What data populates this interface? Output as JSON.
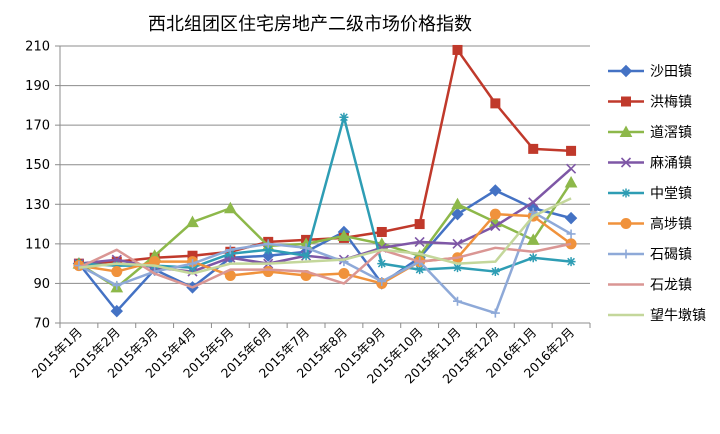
{
  "chart_data": {
    "type": "line",
    "title": "西北组团区住宅房地产二级市场价格指数",
    "xlabel": "",
    "ylabel": "",
    "ylim": [
      70,
      210
    ],
    "yticks": [
      70,
      90,
      110,
      130,
      150,
      170,
      190,
      210
    ],
    "grid": true,
    "legend": "right",
    "categories": [
      "2015年1月",
      "2015年2月",
      "2015年3月",
      "2015年4月",
      "2015年5月",
      "2015年6月",
      "2015年7月",
      "2015年8月",
      "2015年9月",
      "2015年10月",
      "2015年11月",
      "2015年12月",
      "2016年1月",
      "2016年2月"
    ],
    "series": [
      {
        "name": "沙田镇",
        "color": "#4472C4",
        "marker": "diamond",
        "values": [
          100,
          76,
          97,
          88,
          103,
          104,
          106,
          116,
          90,
          103,
          125,
          137,
          128,
          123
        ]
      },
      {
        "name": "洪梅镇",
        "color": "#C0392B",
        "marker": "square",
        "values": [
          100,
          101,
          103,
          104,
          106,
          111,
          112,
          113,
          116,
          120,
          208,
          181,
          158,
          157
        ]
      },
      {
        "name": "道滘镇",
        "color": "#8DB84A",
        "marker": "triangle",
        "values": [
          100,
          88,
          104,
          121,
          128,
          109,
          110,
          114,
          110,
          104,
          130,
          121,
          112,
          141
        ]
      },
      {
        "name": "麻涌镇",
        "color": "#7E57A6",
        "marker": "x",
        "values": [
          100,
          102,
          98,
          96,
          103,
          100,
          104,
          102,
          108,
          111,
          110,
          119,
          131,
          148
        ]
      },
      {
        "name": "中堂镇",
        "color": "#2E9DB4",
        "marker": "star",
        "values": [
          100,
          99,
          99,
          98,
          105,
          107,
          104,
          174,
          100,
          97,
          98,
          96,
          103,
          101
        ]
      },
      {
        "name": "高埗镇",
        "color": "#F0923C",
        "marker": "circle",
        "values": [
          99,
          96,
          101,
          101,
          94,
          96,
          94,
          95,
          90,
          101,
          103,
          125,
          124,
          110
        ]
      },
      {
        "name": "石碣镇",
        "color": "#8EA9D8",
        "marker": "plus",
        "values": [
          99,
          89,
          96,
          100,
          107,
          110,
          108,
          101,
          91,
          101,
          81,
          75,
          126,
          115
        ]
      },
      {
        "name": "石龙镇",
        "color": "#DA9694",
        "marker": "none",
        "values": [
          98,
          107,
          95,
          88,
          97,
          97,
          96,
          90,
          107,
          101,
          103,
          108,
          106,
          110
        ]
      },
      {
        "name": "望牛墩镇",
        "color": "#C4D79B",
        "marker": "none",
        "values": [
          98,
          100,
          99,
          95,
          100,
          100,
          101,
          102,
          107,
          105,
          100,
          101,
          124,
          133
        ]
      }
    ]
  }
}
